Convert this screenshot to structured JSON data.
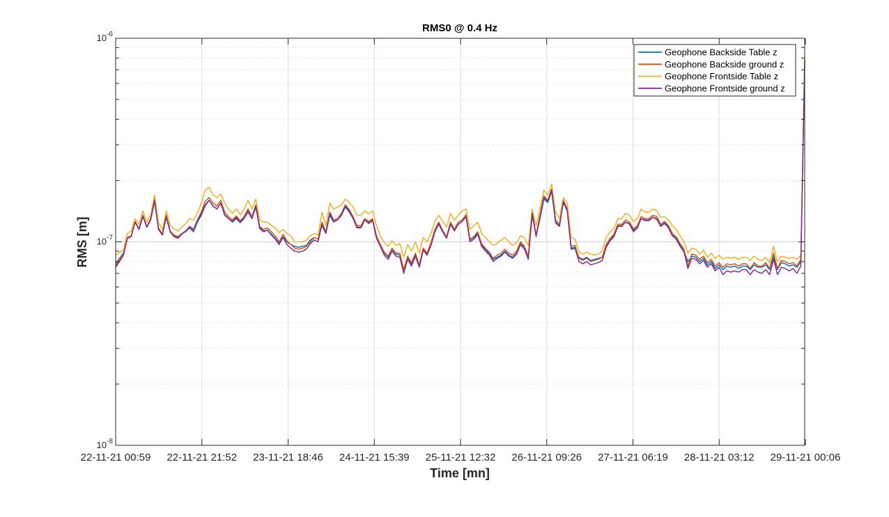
{
  "chart_data": {
    "type": "line",
    "title": "RMS0 @ 0.4 Hz",
    "xlabel": "Time [mn]",
    "ylabel": "RMS [m]",
    "yscale": "log",
    "ylim": [
      1e-08,
      1e-06
    ],
    "y_tick_labels": [
      {
        "value": 1e-08,
        "base": "10",
        "exp": "-8"
      },
      {
        "value": 1e-07,
        "base": "10",
        "exp": "-7"
      },
      {
        "value": 1e-06,
        "base": "10",
        "exp": "-6"
      }
    ],
    "x_tick_labels": [
      "22-11-21 00:59",
      "22-11-21 21:52",
      "23-11-21 18:46",
      "24-11-21 15:39",
      "25-11-21 12:32",
      "26-11-21 09:26",
      "27-11-21 06:19",
      "28-11-21 03:12",
      "29-11-21 00:06"
    ],
    "grid": true,
    "legend_position": "top-right",
    "series": [
      {
        "name": "Geophone Backside Table z",
        "color": "#0072BD",
        "values": [
          7.8e-08,
          8.3e-08,
          8.8e-08,
          1.05e-07,
          1.07e-07,
          1.25e-07,
          1.15e-07,
          1.33e-07,
          1.18e-07,
          1.28e-07,
          1.58e-07,
          1.15e-07,
          1.08e-07,
          1.32e-07,
          1.12e-07,
          1.07e-07,
          1.05e-07,
          1.1e-07,
          1.12e-07,
          1.17e-07,
          1.12e-07,
          1.25e-07,
          1.35e-07,
          1.5e-07,
          1.6e-07,
          1.5e-07,
          1.45e-07,
          1.55e-07,
          1.35e-07,
          1.3e-07,
          1.25e-07,
          1.3e-07,
          1.24e-07,
          1.3e-07,
          1.4e-07,
          1.3e-07,
          1.48e-07,
          1.17e-07,
          1.13e-07,
          1.14e-07,
          1.09e-07,
          1.04e-07,
          9.8e-08,
          1.06e-07,
          1e-07,
          9.7e-08,
          9.5e-08,
          9.4e-08,
          9.5e-08,
          9.6e-08,
          1.02e-07,
          1.05e-07,
          1.03e-07,
          1.2e-07,
          1.1e-07,
          1.35e-07,
          1.25e-07,
          1.28e-07,
          1.35e-07,
          1.48e-07,
          1.4e-07,
          1.3e-07,
          1.18e-07,
          1.18e-07,
          1.28e-07,
          1.24e-07,
          1.28e-07,
          1.06e-07,
          9.6e-08,
          8.8e-08,
          8.4e-08,
          9.2e-08,
          8.7e-08,
          8.6e-08,
          7.3e-08,
          8.4e-08,
          7.8e-08,
          8.6e-08,
          7.7e-08,
          9.2e-08,
          8.7e-08,
          9.7e-08,
          1.12e-07,
          1.22e-07,
          1.12e-07,
          1.05e-07,
          1.22e-07,
          1.14e-07,
          1.22e-07,
          1.26e-07,
          1.33e-07,
          1.02e-07,
          1.05e-07,
          1.1e-07,
          9.6e-08,
          9.2e-08,
          8.7e-08,
          8.2e-08,
          8.4e-08,
          8.6e-08,
          9e-08,
          8.6e-08,
          8.4e-08,
          8.8e-08,
          9.8e-08,
          9.4e-08,
          8.4e-08,
          1.35e-07,
          1.07e-07,
          1.3e-07,
          1.62e-07,
          1.56e-07,
          1.77e-07,
          1.25e-07,
          1.2e-07,
          1.56e-07,
          1.42e-07,
          9.3e-08,
          9.4e-08,
          8.4e-08,
          8.2e-08,
          8.4e-08,
          8.1e-08,
          8.2e-08,
          8.3e-08,
          8.4e-08,
          9.5e-08,
          1.02e-07,
          1.07e-07,
          1.2e-07,
          1.2e-07,
          1.25e-07,
          1.23e-07,
          1.14e-07,
          1.18e-07,
          1.3e-07,
          1.28e-07,
          1.28e-07,
          1.32e-07,
          1.3e-07,
          1.2e-07,
          1.24e-07,
          1.18e-07,
          1.08e-07,
          1.04e-07,
          9.6e-08,
          9e-08,
          8e-08,
          8.5e-08,
          8.4e-08,
          8e-08,
          8.3e-08,
          7.7e-08,
          8e-08,
          7.4e-08,
          7.7e-08,
          7.3e-08,
          7.6e-08,
          7.5e-08,
          7.6e-08,
          7.4e-08,
          7.6e-08,
          7.6e-08,
          7.3e-08,
          7.7e-08,
          7.5e-08,
          7.5e-08,
          7.7e-08,
          7.3e-08,
          8.5e-08,
          7.3e-08,
          7.9e-08,
          7.8e-08,
          7.6e-08,
          7.7e-08,
          7.5e-08,
          8e-08,
          7.8e-07
        ]
      },
      {
        "name": "Geophone Backside ground z",
        "color": "#D95319",
        "values": [
          7.6e-08,
          8.2e-08,
          8.7e-08,
          1.05e-07,
          1.07e-07,
          1.26e-07,
          1.16e-07,
          1.35e-07,
          1.19e-07,
          1.3e-07,
          1.62e-07,
          1.17e-07,
          1.09e-07,
          1.35e-07,
          1.13e-07,
          1.08e-07,
          1.06e-07,
          1.1e-07,
          1.13e-07,
          1.18e-07,
          1.14e-07,
          1.28e-07,
          1.4e-07,
          1.58e-07,
          1.65e-07,
          1.55e-07,
          1.5e-07,
          1.6e-07,
          1.4e-07,
          1.33e-07,
          1.28e-07,
          1.34e-07,
          1.27e-07,
          1.33e-07,
          1.45e-07,
          1.33e-07,
          1.52e-07,
          1.19e-07,
          1.15e-07,
          1.17e-07,
          1.12e-07,
          1.07e-07,
          1e-07,
          1.09e-07,
          1.01e-07,
          9.7e-08,
          9.3e-08,
          9.2e-08,
          9.3e-08,
          9.5e-08,
          1e-07,
          1.05e-07,
          1.03e-07,
          1.25e-07,
          1.12e-07,
          1.4e-07,
          1.28e-07,
          1.3e-07,
          1.38e-07,
          1.52e-07,
          1.44e-07,
          1.33e-07,
          1.2e-07,
          1.2e-07,
          1.3e-07,
          1.26e-07,
          1.3e-07,
          1.07e-07,
          9.7e-08,
          8.9e-08,
          8.5e-08,
          9.3e-08,
          8.8e-08,
          8.8e-08,
          7.3e-08,
          8.5e-08,
          7.9e-08,
          8.8e-08,
          7.7e-08,
          9.3e-08,
          8.8e-08,
          9.9e-08,
          1.15e-07,
          1.25e-07,
          1.14e-07,
          1.06e-07,
          1.25e-07,
          1.15e-07,
          1.25e-07,
          1.28e-07,
          1.36e-07,
          1.03e-07,
          1.06e-07,
          1.12e-07,
          9.8e-08,
          9.3e-08,
          8.9e-08,
          8.3e-08,
          8.6e-08,
          8.8e-08,
          9.2e-08,
          8.8e-08,
          8.6e-08,
          9e-08,
          1e-07,
          9.5e-08,
          8.5e-08,
          1.4e-07,
          1.08e-07,
          1.35e-07,
          1.68e-07,
          1.6e-07,
          1.82e-07,
          1.28e-07,
          1.22e-07,
          1.6e-07,
          1.45e-07,
          9.5e-08,
          9.6e-08,
          8.3e-08,
          8.1e-08,
          8.3e-08,
          8e-08,
          8.1e-08,
          8.2e-08,
          8.4e-08,
          9.7e-08,
          1.04e-07,
          1.09e-07,
          1.22e-07,
          1.22e-07,
          1.28e-07,
          1.25e-07,
          1.16e-07,
          1.2e-07,
          1.33e-07,
          1.3e-07,
          1.3e-07,
          1.35e-07,
          1.33e-07,
          1.22e-07,
          1.26e-07,
          1.2e-07,
          1.1e-07,
          1.06e-07,
          9.8e-08,
          9.2e-08,
          7.6e-08,
          8.7e-08,
          8.6e-08,
          8.2e-08,
          8.5e-08,
          7.9e-08,
          8.2e-08,
          7.6e-08,
          7.9e-08,
          7.5e-08,
          7.8e-08,
          7.7e-08,
          7.8e-08,
          7.6e-08,
          7.8e-08,
          7.8e-08,
          7.4e-08,
          7.9e-08,
          7.6e-08,
          7.6e-08,
          7.9e-08,
          7.4e-08,
          8.8e-08,
          7.4e-08,
          8.1e-08,
          8e-08,
          7.8e-08,
          7.9e-08,
          7.6e-08,
          8.2e-08,
          7.9e-07
        ]
      },
      {
        "name": "Geophone Frontside Table z",
        "color": "#EDB120",
        "values": [
          8.6e-08,
          8.9e-08,
          9.1e-08,
          1.1e-07,
          1.13e-07,
          1.3e-07,
          1.22e-07,
          1.42e-07,
          1.25e-07,
          1.36e-07,
          1.7e-07,
          1.24e-07,
          1.15e-07,
          1.42e-07,
          1.2e-07,
          1.16e-07,
          1.13e-07,
          1.18e-07,
          1.23e-07,
          1.3e-07,
          1.28e-07,
          1.38e-07,
          1.55e-07,
          1.8e-07,
          1.85e-07,
          1.7e-07,
          1.65e-07,
          1.72e-07,
          1.55e-07,
          1.45e-07,
          1.38e-07,
          1.45e-07,
          1.36e-07,
          1.45e-07,
          1.6e-07,
          1.45e-07,
          1.62e-07,
          1.28e-07,
          1.25e-07,
          1.25e-07,
          1.2e-07,
          1.17e-07,
          1.11e-07,
          1.15e-07,
          1.1e-07,
          1.07e-07,
          1e-07,
          1e-07,
          1e-07,
          1.02e-07,
          1.07e-07,
          1.1e-07,
          1.08e-07,
          1.4e-07,
          1.2e-07,
          1.55e-07,
          1.45e-07,
          1.48e-07,
          1.52e-07,
          1.62e-07,
          1.56e-07,
          1.48e-07,
          1.35e-07,
          1.35e-07,
          1.42e-07,
          1.37e-07,
          1.42e-07,
          1.2e-07,
          1.07e-07,
          9.9e-08,
          9.5e-08,
          1.01e-07,
          9.6e-08,
          9.8e-08,
          8.4e-08,
          9.7e-08,
          9e-08,
          1e-07,
          8.8e-08,
          1.05e-07,
          1e-07,
          1.1e-07,
          1.26e-07,
          1.35e-07,
          1.26e-07,
          1.18e-07,
          1.38e-07,
          1.28e-07,
          1.35e-07,
          1.42e-07,
          1.45e-07,
          1.15e-07,
          1.2e-07,
          1.25e-07,
          1.1e-07,
          1.05e-07,
          1e-07,
          9.6e-08,
          9.8e-08,
          1.02e-07,
          1.05e-07,
          1e-07,
          9.6e-08,
          9.9e-08,
          1.07e-07,
          1.05e-07,
          9.6e-08,
          1.45e-07,
          1.2e-07,
          1.45e-07,
          1.8e-07,
          1.7e-07,
          1.92e-07,
          1.4e-07,
          1.3e-07,
          1.65e-07,
          1.55e-07,
          1.05e-07,
          1.03e-07,
          8.9e-08,
          8.7e-08,
          8.9e-08,
          8.7e-08,
          8.6e-08,
          8.7e-08,
          9e-08,
          1.05e-07,
          1.12e-07,
          1.16e-07,
          1.3e-07,
          1.3e-07,
          1.38e-07,
          1.35e-07,
          1.26e-07,
          1.3e-07,
          1.45e-07,
          1.4e-07,
          1.4e-07,
          1.45e-07,
          1.42e-07,
          1.32e-07,
          1.33e-07,
          1.28e-07,
          1.2e-07,
          1.15e-07,
          1.07e-07,
          1e-07,
          8.8e-08,
          9.3e-08,
          9.2e-08,
          8.7e-08,
          9.1e-08,
          8.4e-08,
          8.8e-08,
          8.3e-08,
          8.6e-08,
          8.2e-08,
          8.4e-08,
          8.3e-08,
          8.4e-08,
          8.2e-08,
          8.4e-08,
          8.4e-08,
          8.1e-08,
          8.5e-08,
          8.2e-08,
          8.1e-08,
          8.4e-08,
          7.9e-08,
          9.5e-08,
          8e-08,
          8.5e-08,
          8.4e-08,
          8.3e-08,
          8.4e-08,
          8.2e-08,
          8.6e-08,
          8.1e-07
        ]
      },
      {
        "name": "Geophone Frontside ground z",
        "color": "#7E2F8E",
        "values": [
          7.5e-08,
          8e-08,
          8.6e-08,
          1.04e-07,
          1.06e-07,
          1.25e-07,
          1.15e-07,
          1.34e-07,
          1.18e-07,
          1.29e-07,
          1.6e-07,
          1.15e-07,
          1.08e-07,
          1.33e-07,
          1.12e-07,
          1.06e-07,
          1.04e-07,
          1.09e-07,
          1.13e-07,
          1.19e-07,
          1.15e-07,
          1.28e-07,
          1.37e-07,
          1.52e-07,
          1.6e-07,
          1.5e-07,
          1.45e-07,
          1.55e-07,
          1.36e-07,
          1.3e-07,
          1.26e-07,
          1.32e-07,
          1.25e-07,
          1.31e-07,
          1.42e-07,
          1.3e-07,
          1.5e-07,
          1.16e-07,
          1.12e-07,
          1.14e-07,
          1.08e-07,
          1.03e-07,
          9.7e-08,
          1.05e-07,
          9.7e-08,
          9.3e-08,
          9e-08,
          8.9e-08,
          9e-08,
          9.2e-08,
          9.8e-08,
          1.02e-07,
          1e-07,
          1.22e-07,
          1.1e-07,
          1.38e-07,
          1.26e-07,
          1.28e-07,
          1.36e-07,
          1.5e-07,
          1.42e-07,
          1.3e-07,
          1.17e-07,
          1.17e-07,
          1.28e-07,
          1.23e-07,
          1.27e-07,
          1.04e-07,
          9.5e-08,
          8.6e-08,
          8.2e-08,
          9e-08,
          8.5e-08,
          8.4e-08,
          7e-08,
          8.2e-08,
          7.6e-08,
          8.5e-08,
          7.5e-08,
          9.1e-08,
          8.6e-08,
          9.6e-08,
          1.12e-07,
          1.23e-07,
          1.12e-07,
          1.04e-07,
          1.22e-07,
          1.13e-07,
          1.22e-07,
          1.26e-07,
          1.33e-07,
          1e-07,
          1.03e-07,
          1.09e-07,
          9.5e-08,
          9e-08,
          8.6e-08,
          8e-08,
          8.3e-08,
          8.5e-08,
          8.9e-08,
          8.5e-08,
          8.3e-08,
          8.7e-08,
          9.7e-08,
          9.2e-08,
          8.2e-08,
          1.38e-07,
          1.06e-07,
          1.32e-07,
          1.65e-07,
          1.58e-07,
          1.8e-07,
          1.24e-07,
          1.19e-07,
          1.58e-07,
          1.43e-07,
          9.2e-08,
          9.3e-08,
          8e-08,
          7.8e-08,
          8e-08,
          7.7e-08,
          7.8e-08,
          7.9e-08,
          8.1e-08,
          9.4e-08,
          1.01e-07,
          1.06e-07,
          1.19e-07,
          1.19e-07,
          1.25e-07,
          1.22e-07,
          1.12e-07,
          1.17e-07,
          1.3e-07,
          1.27e-07,
          1.27e-07,
          1.32e-07,
          1.29e-07,
          1.19e-07,
          1.23e-07,
          1.17e-07,
          1.07e-07,
          1.03e-07,
          9.5e-08,
          8.9e-08,
          7.4e-08,
          8.3e-08,
          8.2e-08,
          7.8e-08,
          8.1e-08,
          7.5e-08,
          7.8e-08,
          7.2e-08,
          7.5e-08,
          6.9e-08,
          7.2e-08,
          7.1e-08,
          7.2e-08,
          7.1e-08,
          7.3e-08,
          7.3e-08,
          6.9e-08,
          7.3e-08,
          7.1e-08,
          7e-08,
          7.3e-08,
          6.9e-08,
          8.2e-08,
          6.9e-08,
          7.5e-08,
          7.4e-08,
          7.2e-08,
          7.4e-08,
          7e-08,
          7.6e-08,
          7.7e-07
        ]
      }
    ]
  }
}
